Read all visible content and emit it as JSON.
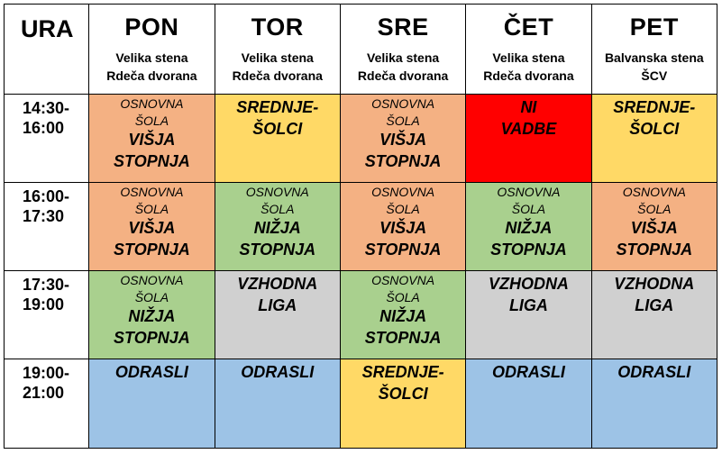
{
  "header": {
    "ura": "URA",
    "days": [
      {
        "name": "PON",
        "venue1": "Velika stena",
        "venue2": "Rdeča dvorana"
      },
      {
        "name": "TOR",
        "venue1": "Velika stena",
        "venue2": "Rdeča dvorana"
      },
      {
        "name": "SRE",
        "venue1": "Velika stena",
        "venue2": "Rdeča dvorana"
      },
      {
        "name": "ČET",
        "venue1": "Velika stena",
        "venue2": "Rdeča dvorana"
      },
      {
        "name": "PET",
        "venue1": "Balvanska stena",
        "venue2": "ŠCV"
      }
    ]
  },
  "rows": [
    {
      "time_start": "14:30-",
      "time_end": "16:00",
      "cells": [
        {
          "sub1": "OSNOVNA",
          "sub2": "ŠOLA",
          "main1": "VIŠJA",
          "main2": "STOPNJA",
          "color": "#f4b183"
        },
        {
          "main1": "SREDNJE-",
          "main2": "ŠOLCI",
          "color": "#ffd966"
        },
        {
          "sub1": "OSNOVNA",
          "sub2": "ŠOLA",
          "main1": "VIŠJA",
          "main2": "STOPNJA",
          "color": "#f4b183"
        },
        {
          "main1": "NI",
          "main2": "VADBE",
          "color": "#ff0000"
        },
        {
          "main1": "SREDNJE-",
          "main2": "ŠOLCI",
          "color": "#ffd966"
        }
      ]
    },
    {
      "time_start": "16:00-",
      "time_end": "17:30",
      "cells": [
        {
          "sub1": "OSNOVNA",
          "sub2": "ŠOLA",
          "main1": "VIŠJA",
          "main2": "STOPNJA",
          "color": "#f4b183"
        },
        {
          "sub1": "OSNOVNA",
          "sub2": "ŠOLA",
          "main1": "NIŽJA",
          "main2": "STOPNJA",
          "color": "#a9d08e"
        },
        {
          "sub1": "OSNOVNA",
          "sub2": "ŠOLA",
          "main1": "VIŠJA",
          "main2": "STOPNJA",
          "color": "#f4b183"
        },
        {
          "sub1": "OSNOVNA",
          "sub2": "ŠOLA",
          "main1": "NIŽJA",
          "main2": "STOPNJA",
          "color": "#a9d08e"
        },
        {
          "sub1": "OSNOVNA",
          "sub2": "ŠOLA",
          "main1": "VIŠJA",
          "main2": "STOPNJA",
          "color": "#f4b183"
        }
      ]
    },
    {
      "time_start": "17:30-",
      "time_end": "19:00",
      "cells": [
        {
          "sub1": "OSNOVNA",
          "sub2": "ŠOLA",
          "main1": "NIŽJA",
          "main2": "STOPNJA",
          "color": "#a9d08e"
        },
        {
          "main1": "VZHODNA",
          "main2": "LIGA",
          "color": "#d0d0d0"
        },
        {
          "sub1": "OSNOVNA",
          "sub2": "ŠOLA",
          "main1": "NIŽJA",
          "main2": "STOPNJA",
          "color": "#a9d08e"
        },
        {
          "main1": "VZHODNA",
          "main2": "LIGA",
          "color": "#d0d0d0"
        },
        {
          "main1": "VZHODNA",
          "main2": "LIGA",
          "color": "#d0d0d0"
        }
      ]
    },
    {
      "time_start": "19:00-",
      "time_end": "21:00",
      "cells": [
        {
          "main1": "ODRASLI",
          "color": "#9dc3e6"
        },
        {
          "main1": "ODRASLI",
          "color": "#9dc3e6"
        },
        {
          "main1": "SREDNJE-",
          "main2": "ŠOLCI",
          "color": "#ffd966"
        },
        {
          "main1": "ODRASLI",
          "color": "#9dc3e6"
        },
        {
          "main1": "ODRASLI",
          "color": "#9dc3e6"
        }
      ]
    }
  ]
}
